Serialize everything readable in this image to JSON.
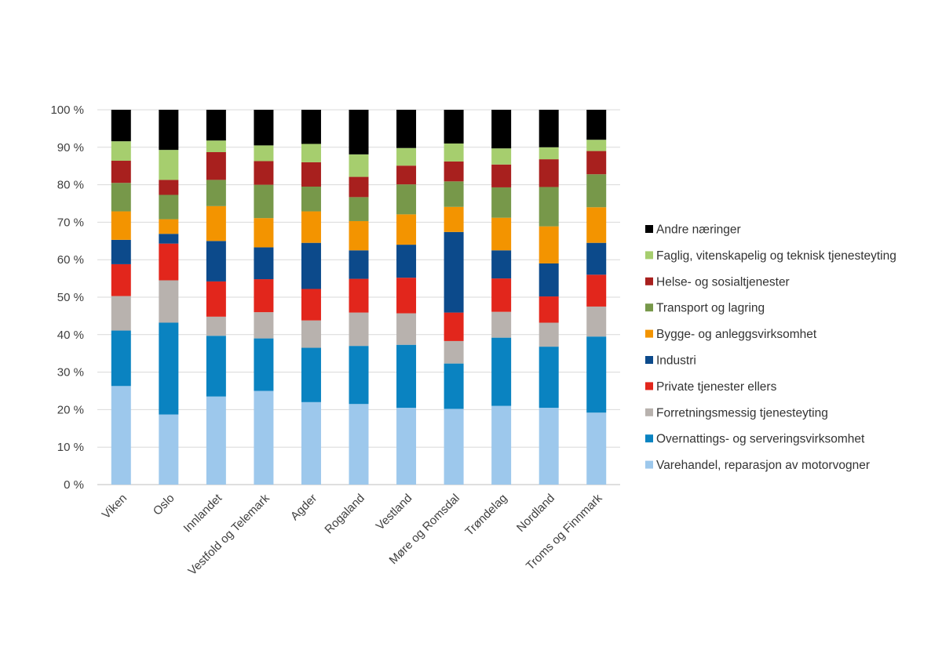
{
  "chart_data": {
    "type": "bar",
    "stacked": true,
    "percent": true,
    "title": "",
    "xlabel": "",
    "ylabel": "",
    "ylim": [
      0,
      100
    ],
    "y_ticks": [
      "0 %",
      "10 %",
      "20 %",
      "30 %",
      "40 %",
      "50 %",
      "60 %",
      "70 %",
      "80 %",
      "90 %",
      "100 %"
    ],
    "grid": true,
    "legend_position": "right",
    "categories": [
      "Viken",
      "Oslo",
      "Innlandet",
      "Vestfold og Telemark",
      "Agder",
      "Rogaland",
      "Vestland",
      "Møre og Romsdal",
      "Trøndelag",
      "Nordland",
      "Troms og Finnmark"
    ],
    "series": [
      {
        "name": "Varehandel, reparasjon av motorvogner",
        "color": "#9DC8EC",
        "values": [
          26.3,
          18.7,
          23.5,
          25.0,
          22.0,
          21.5,
          20.5,
          20.2,
          21.0,
          20.5,
          19.2
        ]
      },
      {
        "name": "Overnattings- og serveringsvirksomhet",
        "color": "#0A83C1",
        "values": [
          14.8,
          24.5,
          16.2,
          14.0,
          14.5,
          15.5,
          16.8,
          12.1,
          18.2,
          16.3,
          20.3
        ]
      },
      {
        "name": "Forretningsmessig tjenesteyting",
        "color": "#B8B2AE",
        "values": [
          9.2,
          11.3,
          5.1,
          7.0,
          7.3,
          8.9,
          8.4,
          6.0,
          6.9,
          6.4,
          8.0
        ]
      },
      {
        "name": "Private tjenester ellers",
        "color": "#E2261C",
        "values": [
          8.5,
          9.8,
          9.4,
          8.8,
          8.4,
          9.0,
          9.5,
          7.6,
          8.9,
          7.0,
          8.5
        ]
      },
      {
        "name": "Industri",
        "color": "#0C4A8B",
        "values": [
          6.5,
          2.6,
          10.8,
          8.5,
          12.3,
          7.6,
          8.8,
          21.5,
          7.5,
          8.8,
          8.5
        ]
      },
      {
        "name": "Bygge- og anleggsvirksomhet",
        "color": "#F39400",
        "values": [
          7.6,
          3.9,
          9.3,
          7.8,
          8.4,
          7.8,
          8.1,
          6.7,
          8.7,
          9.9,
          9.5
        ]
      },
      {
        "name": "Transport og lagring",
        "color": "#77984A",
        "values": [
          7.6,
          6.5,
          7.0,
          8.9,
          6.6,
          6.4,
          8.0,
          6.8,
          8.1,
          10.5,
          8.8
        ]
      },
      {
        "name": "Helse- og sosialtjenester",
        "color": "#A8201E",
        "values": [
          5.9,
          4.0,
          7.4,
          6.3,
          6.5,
          5.4,
          5.0,
          5.3,
          6.1,
          7.4,
          6.2
        ]
      },
      {
        "name": "Faglig, vitenskapelig og teknisk tjenesteyting",
        "color": "#A6CE6E",
        "values": [
          5.2,
          8.0,
          3.1,
          4.2,
          4.9,
          6.0,
          4.7,
          4.8,
          4.3,
          3.2,
          3.0
        ]
      },
      {
        "name": "Andre næringer",
        "color": "#000000",
        "values": [
          8.4,
          10.7,
          8.2,
          9.5,
          9.1,
          11.9,
          10.2,
          9.0,
          10.3,
          10.0,
          8.0
        ]
      }
    ]
  }
}
